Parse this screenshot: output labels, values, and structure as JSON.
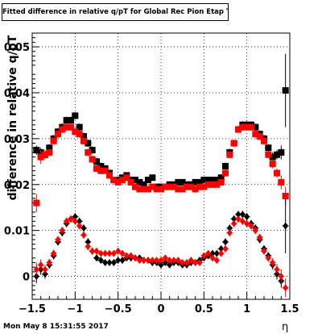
{
  "title": "Fitted difference in relative q/pT  for Global Rec Pion Etap T",
  "timestamp": "Mon May  8 15:31:55 2017",
  "chart_data": {
    "type": "scatter",
    "xlabel": "η",
    "ylabel": "difference in relative q/pT",
    "xlim": [
      -1.5,
      1.5
    ],
    "ylim": [
      -0.005,
      0.053
    ],
    "xticks": [
      -1.5,
      -1,
      -0.5,
      0,
      0.5,
      1,
      1.5
    ],
    "xtick_labels": [
      "−1.5",
      "−1",
      "−0.5",
      "0",
      "0.5",
      "1",
      "1.5"
    ],
    "yticks": [
      0,
      0.01,
      0.02,
      0.03,
      0.04,
      0.05
    ],
    "ytick_labels": [
      "0",
      "0.01",
      "0.02",
      "0.03",
      "0.04",
      "0.05"
    ],
    "grid": true,
    "series": [
      {
        "marker": "square",
        "color": "#000000",
        "x": [
          -1.45,
          -1.4,
          -1.35,
          -1.3,
          -1.25,
          -1.2,
          -1.15,
          -1.1,
          -1.05,
          -1.0,
          -0.95,
          -0.9,
          -0.85,
          -0.8,
          -0.75,
          -0.7,
          -0.65,
          -0.6,
          -0.55,
          -0.5,
          -0.45,
          -0.4,
          -0.35,
          -0.3,
          -0.25,
          -0.2,
          -0.15,
          -0.1,
          -0.05,
          0.0,
          0.05,
          0.1,
          0.15,
          0.2,
          0.25,
          0.3,
          0.35,
          0.4,
          0.45,
          0.5,
          0.55,
          0.6,
          0.65,
          0.7,
          0.75,
          0.8,
          0.85,
          0.9,
          0.95,
          1.0,
          1.05,
          1.1,
          1.15,
          1.2,
          1.25,
          1.3,
          1.35,
          1.4,
          1.45
        ],
        "y": [
          0.0275,
          0.027,
          0.0265,
          0.028,
          0.03,
          0.0315,
          0.0325,
          0.034,
          0.034,
          0.035,
          0.0325,
          0.0305,
          0.029,
          0.0275,
          0.025,
          0.024,
          0.0235,
          0.0225,
          0.021,
          0.021,
          0.0215,
          0.022,
          0.021,
          0.021,
          0.0205,
          0.02,
          0.021,
          0.0215,
          0.0195,
          0.0195,
          0.0195,
          0.02,
          0.02,
          0.0205,
          0.0205,
          0.02,
          0.02,
          0.0205,
          0.0205,
          0.021,
          0.021,
          0.021,
          0.021,
          0.0215,
          0.024,
          0.027,
          0.029,
          0.032,
          0.033,
          0.033,
          0.033,
          0.0325,
          0.031,
          0.03,
          0.028,
          0.026,
          0.0265,
          0.027,
          0.0405
        ],
        "err": [
          0.001,
          0.001,
          0.001,
          0.0008,
          0.0008,
          0.0008,
          0.0008,
          0.0008,
          0.0008,
          0.0008,
          0.0008,
          0.0008,
          0.0008,
          0.0008,
          0.0008,
          0.0008,
          0.0006,
          0.0006,
          0.0006,
          0.0006,
          0.0006,
          0.0006,
          0.0006,
          0.0006,
          0.0006,
          0.0006,
          0.0006,
          0.0006,
          0.0006,
          0.0006,
          0.0006,
          0.0006,
          0.0006,
          0.0006,
          0.0006,
          0.0006,
          0.0006,
          0.0006,
          0.0006,
          0.0006,
          0.0006,
          0.0006,
          0.0006,
          0.0006,
          0.0008,
          0.0008,
          0.0008,
          0.0008,
          0.0008,
          0.0008,
          0.0008,
          0.0008,
          0.0008,
          0.0008,
          0.0008,
          0.001,
          0.001,
          0.0015,
          0.008
        ]
      },
      {
        "marker": "square",
        "color": "#ff0000",
        "x": [
          -1.45,
          -1.4,
          -1.35,
          -1.3,
          -1.25,
          -1.2,
          -1.15,
          -1.1,
          -1.05,
          -1.0,
          -0.95,
          -0.9,
          -0.85,
          -0.8,
          -0.75,
          -0.7,
          -0.65,
          -0.6,
          -0.55,
          -0.5,
          -0.45,
          -0.4,
          -0.35,
          -0.3,
          -0.25,
          -0.2,
          -0.15,
          -0.1,
          -0.05,
          0.0,
          0.05,
          0.1,
          0.15,
          0.2,
          0.25,
          0.3,
          0.35,
          0.4,
          0.45,
          0.5,
          0.55,
          0.6,
          0.65,
          0.7,
          0.75,
          0.8,
          0.85,
          0.9,
          0.95,
          1.0,
          1.05,
          1.1,
          1.15,
          1.2,
          1.25,
          1.3,
          1.35,
          1.4,
          1.45
        ],
        "y": [
          0.016,
          0.026,
          0.0265,
          0.027,
          0.0295,
          0.031,
          0.032,
          0.0325,
          0.0325,
          0.0315,
          0.031,
          0.0295,
          0.027,
          0.0255,
          0.0235,
          0.023,
          0.023,
          0.022,
          0.021,
          0.0205,
          0.021,
          0.0215,
          0.0205,
          0.0195,
          0.019,
          0.019,
          0.019,
          0.0195,
          0.019,
          0.019,
          0.0195,
          0.0195,
          0.0195,
          0.019,
          0.019,
          0.0195,
          0.0195,
          0.019,
          0.0195,
          0.0195,
          0.02,
          0.02,
          0.02,
          0.0205,
          0.0225,
          0.0265,
          0.029,
          0.032,
          0.0325,
          0.0325,
          0.0325,
          0.031,
          0.0305,
          0.0295,
          0.0265,
          0.0245,
          0.0225,
          0.0205,
          0.0175
        ],
        "err": [
          0.002,
          0.0015,
          0.001,
          0.0008,
          0.0008,
          0.0008,
          0.0008,
          0.0008,
          0.0008,
          0.0008,
          0.0008,
          0.0008,
          0.0008,
          0.0008,
          0.0008,
          0.0008,
          0.0006,
          0.0006,
          0.0006,
          0.0006,
          0.0006,
          0.0006,
          0.0006,
          0.0006,
          0.0006,
          0.0006,
          0.0006,
          0.0006,
          0.0006,
          0.0006,
          0.0006,
          0.0006,
          0.0006,
          0.0006,
          0.0006,
          0.0006,
          0.0006,
          0.0006,
          0.0006,
          0.0006,
          0.0006,
          0.0006,
          0.0006,
          0.0006,
          0.0008,
          0.0008,
          0.0008,
          0.0008,
          0.0008,
          0.0008,
          0.0008,
          0.0008,
          0.0008,
          0.0008,
          0.0008,
          0.001,
          0.001,
          0.0015,
          0.002
        ]
      },
      {
        "marker": "diamond",
        "color": "#000000",
        "x": [
          -1.45,
          -1.4,
          -1.35,
          -1.3,
          -1.25,
          -1.2,
          -1.15,
          -1.1,
          -1.05,
          -1.0,
          -0.95,
          -0.9,
          -0.85,
          -0.8,
          -0.75,
          -0.7,
          -0.65,
          -0.6,
          -0.55,
          -0.5,
          -0.45,
          -0.4,
          -0.35,
          -0.3,
          -0.25,
          -0.2,
          -0.15,
          -0.1,
          -0.05,
          0.0,
          0.05,
          0.1,
          0.15,
          0.2,
          0.25,
          0.3,
          0.35,
          0.4,
          0.45,
          0.5,
          0.55,
          0.6,
          0.65,
          0.7,
          0.75,
          0.8,
          0.85,
          0.9,
          0.95,
          1.0,
          1.05,
          1.1,
          1.15,
          1.2,
          1.25,
          1.3,
          1.35,
          1.4,
          1.45
        ],
        "y": [
          0.0,
          0.0015,
          0.0005,
          0.0025,
          0.0045,
          0.0075,
          0.0095,
          0.0115,
          0.0125,
          0.013,
          0.012,
          0.0105,
          0.0075,
          0.0055,
          0.004,
          0.0035,
          0.003,
          0.003,
          0.003,
          0.0035,
          0.0035,
          0.004,
          0.004,
          0.004,
          0.004,
          0.0035,
          0.0035,
          0.003,
          0.003,
          0.0025,
          0.003,
          0.0025,
          0.003,
          0.003,
          0.0025,
          0.0025,
          0.003,
          0.003,
          0.0035,
          0.004,
          0.0045,
          0.005,
          0.005,
          0.006,
          0.0075,
          0.0105,
          0.0125,
          0.0135,
          0.0135,
          0.013,
          0.0115,
          0.0105,
          0.008,
          0.006,
          0.0045,
          0.0025,
          0.0005,
          -0.001,
          0.011
        ],
        "err": [
          0.0015,
          0.0012,
          0.001,
          0.0008,
          0.0008,
          0.0008,
          0.0008,
          0.0008,
          0.0008,
          0.0008,
          0.0008,
          0.0008,
          0.0008,
          0.0008,
          0.0006,
          0.0006,
          0.0006,
          0.0006,
          0.0006,
          0.0006,
          0.0006,
          0.0006,
          0.0006,
          0.0006,
          0.0006,
          0.0006,
          0.0006,
          0.0006,
          0.0006,
          0.0006,
          0.0006,
          0.0006,
          0.0006,
          0.0006,
          0.0006,
          0.0006,
          0.0006,
          0.0006,
          0.0006,
          0.0006,
          0.0006,
          0.0006,
          0.0006,
          0.0006,
          0.0008,
          0.0008,
          0.0008,
          0.0008,
          0.0008,
          0.0008,
          0.0008,
          0.0008,
          0.0008,
          0.0008,
          0.0008,
          0.001,
          0.0012,
          0.0015,
          0.006
        ]
      },
      {
        "marker": "diamond",
        "color": "#ff0000",
        "x": [
          -1.45,
          -1.4,
          -1.35,
          -1.3,
          -1.25,
          -1.2,
          -1.15,
          -1.1,
          -1.05,
          -1.0,
          -0.95,
          -0.9,
          -0.85,
          -0.8,
          -0.75,
          -0.7,
          -0.65,
          -0.6,
          -0.55,
          -0.5,
          -0.45,
          -0.4,
          -0.35,
          -0.3,
          -0.25,
          -0.2,
          -0.15,
          -0.1,
          -0.05,
          0.0,
          0.05,
          0.1,
          0.15,
          0.2,
          0.25,
          0.3,
          0.35,
          0.4,
          0.45,
          0.5,
          0.55,
          0.6,
          0.65,
          0.7,
          0.75,
          0.8,
          0.85,
          0.9,
          0.95,
          1.0,
          1.05,
          1.1,
          1.15,
          1.2,
          1.25,
          1.3,
          1.35,
          1.4,
          1.45
        ],
        "y": [
          0.0015,
          0.0025,
          0.0015,
          0.003,
          0.005,
          0.008,
          0.01,
          0.012,
          0.0125,
          0.012,
          0.011,
          0.009,
          0.0065,
          0.0055,
          0.0055,
          0.005,
          0.005,
          0.005,
          0.005,
          0.0055,
          0.005,
          0.0045,
          0.0045,
          0.004,
          0.0035,
          0.0035,
          0.0035,
          0.0035,
          0.0035,
          0.0035,
          0.004,
          0.0035,
          0.0035,
          0.0035,
          0.003,
          0.003,
          0.0035,
          0.003,
          0.003,
          0.0045,
          0.005,
          0.004,
          0.0035,
          0.005,
          0.006,
          0.0095,
          0.0115,
          0.0125,
          0.012,
          0.0115,
          0.011,
          0.01,
          0.0085,
          0.0055,
          0.004,
          0.003,
          0.0015,
          0.0,
          -0.0025
        ],
        "err": [
          0.0015,
          0.0012,
          0.001,
          0.0008,
          0.0008,
          0.0008,
          0.0008,
          0.0008,
          0.0008,
          0.0008,
          0.0008,
          0.0008,
          0.0008,
          0.0008,
          0.0006,
          0.0006,
          0.0006,
          0.0006,
          0.0006,
          0.0006,
          0.0006,
          0.0006,
          0.0006,
          0.0006,
          0.0006,
          0.0006,
          0.0006,
          0.0006,
          0.0006,
          0.0006,
          0.0006,
          0.0006,
          0.0006,
          0.0006,
          0.0006,
          0.0006,
          0.0006,
          0.0006,
          0.0006,
          0.0006,
          0.0006,
          0.0006,
          0.0006,
          0.0006,
          0.0008,
          0.0008,
          0.0008,
          0.0008,
          0.0008,
          0.0008,
          0.0008,
          0.0008,
          0.0008,
          0.0008,
          0.0008,
          0.001,
          0.0012,
          0.0015,
          0.002
        ]
      }
    ]
  }
}
